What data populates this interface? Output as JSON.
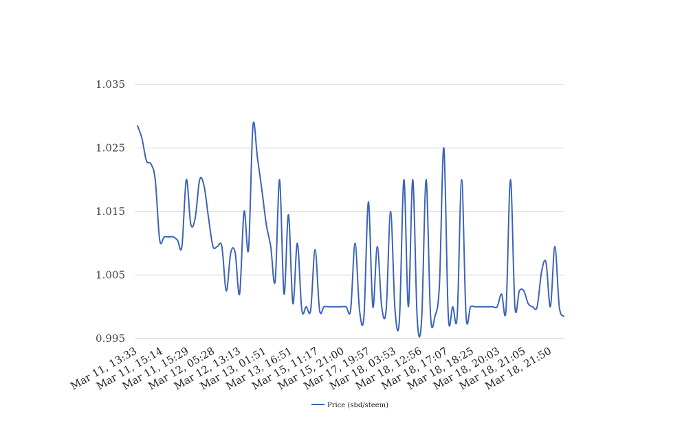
{
  "chart_data": {
    "type": "line",
    "title": "",
    "xlabel": "",
    "ylabel": "",
    "ylim": [
      0.995,
      1.035
    ],
    "y_ticks": [
      0.995,
      1.005,
      1.015,
      1.025,
      1.035
    ],
    "y_tick_labels": [
      "0.995",
      "1.005",
      "1.015",
      "1.025",
      "1.035"
    ],
    "x_tick_labels": [
      "Mar 11, 13:33",
      "Mar 11, 15:14",
      "Mar 11, 15:29",
      "Mar 12, 05:28",
      "Mar 12, 13:13",
      "Mar 13, 01:51",
      "Mar 13, 16:51",
      "Mar 15, 11:17",
      "Mar 15, 21:00",
      "Mar 17, 19:57",
      "Mar 18, 03:53",
      "Mar 18, 12:56",
      "Mar 18, 17:07",
      "Mar 18, 18:25",
      "Mar 18, 20:03",
      "Mar 18, 21:05",
      "Mar 18, 21:50"
    ],
    "grid": true,
    "legend_position": "bottom",
    "series": [
      {
        "name": "Price (sbd/steem)",
        "color": "#3a63b8",
        "values": [
          1.0285,
          1.0265,
          1.023,
          1.0225,
          1.02,
          1.0105,
          1.011,
          1.011,
          1.011,
          1.0105,
          1.0095,
          1.02,
          1.013,
          1.014,
          1.02,
          1.019,
          1.014,
          1.0095,
          1.0095,
          1.0095,
          1.0025,
          1.0085,
          1.0085,
          1.002,
          1.015,
          1.009,
          1.0285,
          1.0235,
          1.0185,
          1.013,
          1.0095,
          1.004,
          1.02,
          1.002,
          1.0145,
          1.0005,
          1.01,
          0.9995,
          1.0,
          0.9995,
          1.009,
          0.9995,
          1.0,
          1.0,
          1.0,
          1.0,
          1.0,
          1.0,
          0.9995,
          1.01,
          0.9995,
          0.9985,
          1.0165,
          1.0,
          1.0095,
          1.0,
          0.9995,
          1.015,
          0.9995,
          0.998,
          1.02,
          1.0,
          1.02,
          0.998,
          0.998,
          1.02,
          0.9985,
          0.9985,
          1.0035,
          1.025,
          0.9985,
          1.0,
          0.9985,
          1.02,
          0.9985,
          1.0,
          1.0,
          1.0,
          1.0,
          1.0,
          1.0,
          1.0,
          1.002,
          0.9995,
          1.02,
          1.0,
          1.0025,
          1.0025,
          1.0005,
          1.0,
          1.0,
          1.0055,
          1.007,
          1.0,
          1.0095,
          1.0,
          0.9985
        ]
      }
    ]
  }
}
